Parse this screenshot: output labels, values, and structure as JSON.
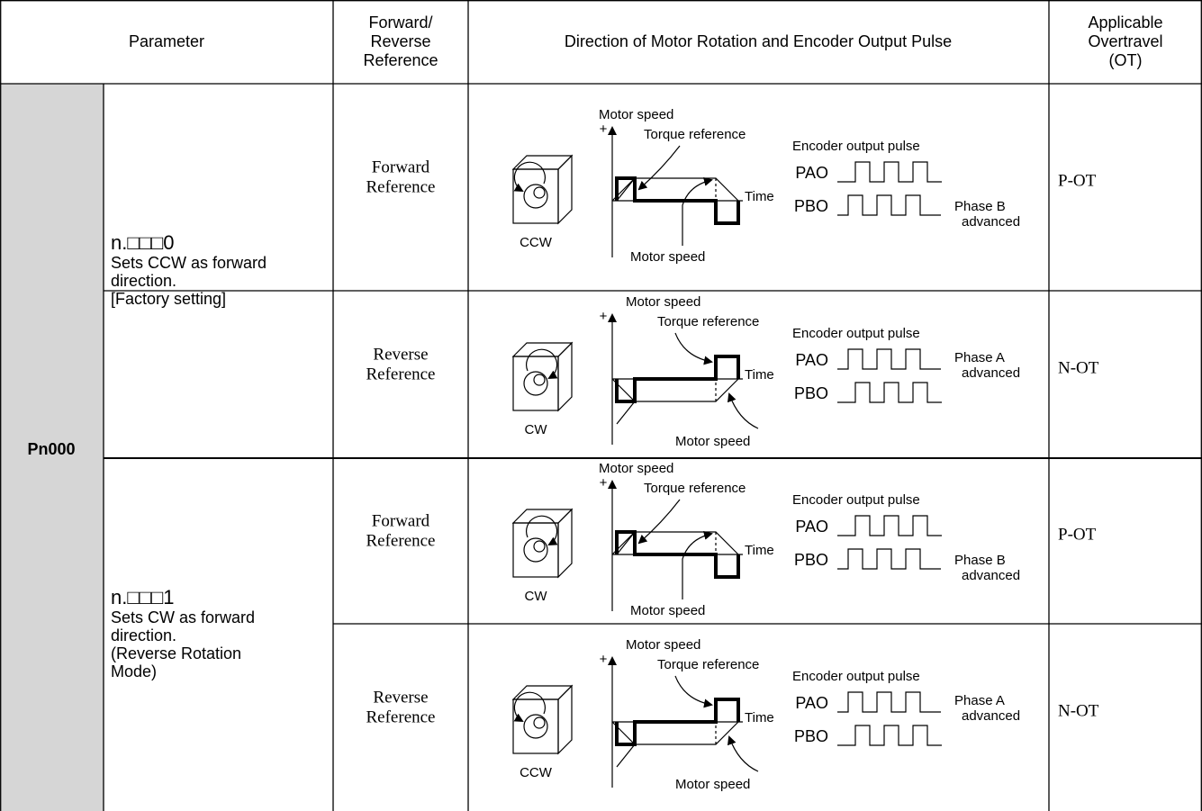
{
  "header": {
    "parameter": "Parameter",
    "reference": [
      "Forward/",
      "Reverse",
      "Reference"
    ],
    "direction": "Direction of Motor Rotation and Encoder Output Pulse",
    "overtravel": [
      "Applicable",
      "Overtravel",
      "(OT)"
    ]
  },
  "parameter": "Pn000",
  "groups": [
    {
      "setting": "n.□□□0",
      "description": [
        "Sets CCW as forward",
        "direction.",
        "[Factory setting]"
      ],
      "rows": [
        {
          "reference": [
            "Forward",
            "Reference"
          ],
          "diagram": {
            "direction": "forward",
            "speed_label": "Motor speed",
            "plus": "+",
            "torque_label": "Torque reference",
            "time_label": "Time",
            "speed_label_bottom": "Motor speed",
            "encoder_label": "Encoder output pulse",
            "pao": "PAO",
            "pbo": "PBO",
            "phase": [
              "Phase B",
              "advanced"
            ],
            "rotation": "CCW"
          },
          "ot": "P-OT"
        },
        {
          "reference": [
            "Reverse",
            "Reference"
          ],
          "diagram": {
            "direction": "reverse",
            "speed_label": "Motor speed",
            "plus": "+",
            "torque_label": "Torque reference",
            "time_label": "Time",
            "speed_label_bottom": "Motor speed",
            "encoder_label": "Encoder output pulse",
            "pao": "PAO",
            "pbo": "PBO",
            "phase": [
              "Phase A",
              "advanced"
            ],
            "rotation": "CW"
          },
          "ot": "N-OT"
        }
      ]
    },
    {
      "setting": "n.□□□1",
      "description": [
        "Sets CW as forward",
        "direction.",
        "(Reverse Rotation",
        "Mode)"
      ],
      "rows": [
        {
          "reference": [
            "Forward",
            "Reference"
          ],
          "diagram": {
            "direction": "forward",
            "speed_label": "Motor speed",
            "plus": "+",
            "torque_label": "Torque reference",
            "time_label": "Time",
            "speed_label_bottom": "Motor speed",
            "encoder_label": "Encoder output pulse",
            "pao": "PAO",
            "pbo": "PBO",
            "phase": [
              "Phase B",
              "advanced"
            ],
            "rotation": "CW"
          },
          "ot": "P-OT"
        },
        {
          "reference": [
            "Reverse",
            "Reference"
          ],
          "diagram": {
            "direction": "reverse",
            "speed_label": "Motor speed",
            "plus": "+",
            "torque_label": "Torque reference",
            "time_label": "Time",
            "speed_label_bottom": "Motor speed",
            "encoder_label": "Encoder output pulse",
            "pao": "PAO",
            "pbo": "PBO",
            "phase": [
              "Phase A",
              "advanced"
            ],
            "rotation": "CCW"
          },
          "ot": "N-OT"
        }
      ]
    }
  ]
}
